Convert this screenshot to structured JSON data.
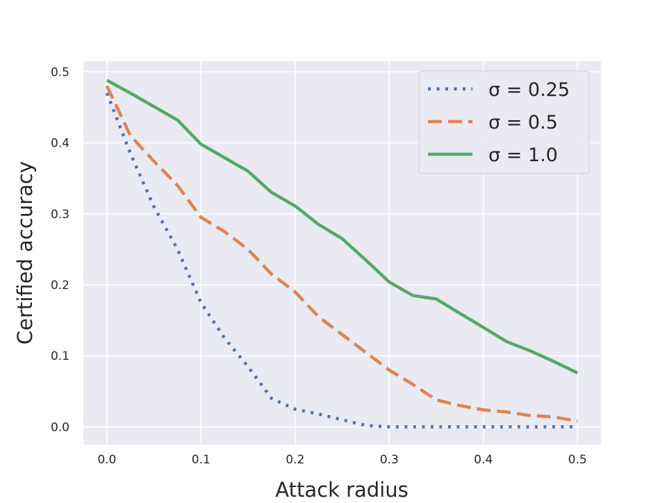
{
  "chart_data": {
    "type": "line",
    "title": "",
    "xlabel": "Attack radius",
    "ylabel": "Certified accuracy",
    "xlim": [
      -0.025,
      0.525
    ],
    "ylim": [
      -0.025,
      0.515
    ],
    "xticks": [
      "0.0",
      "0.1",
      "0.2",
      "0.3",
      "0.4",
      "0.5"
    ],
    "yticks": [
      "0.0",
      "0.1",
      "0.2",
      "0.3",
      "0.4",
      "0.5"
    ],
    "grid": true,
    "legend_position": "top-right",
    "x": [
      0,
      0.025,
      0.05,
      0.075,
      0.1,
      0.125,
      0.15,
      0.175,
      0.2,
      0.225,
      0.25,
      0.275,
      0.3,
      0.325,
      0.35,
      0.375,
      0.4,
      0.425,
      0.45,
      0.475,
      0.5
    ],
    "series": [
      {
        "name": "σ = 0.25",
        "style": "dotted",
        "color": "#4c72b0",
        "values": [
          0.47,
          0.385,
          0.31,
          0.25,
          0.175,
          0.125,
          0.085,
          0.04,
          0.025,
          0.018,
          0.01,
          0.002,
          0,
          0,
          0,
          0,
          0,
          0,
          0,
          0,
          0
        ]
      },
      {
        "name": "σ = 0.5",
        "style": "dashed",
        "color": "#dd8452",
        "values": [
          0.48,
          0.41,
          0.374,
          0.34,
          0.295,
          0.275,
          0.25,
          0.215,
          0.19,
          0.155,
          0.13,
          0.105,
          0.08,
          0.06,
          0.038,
          0.03,
          0.024,
          0.021,
          0.016,
          0.014,
          0.008
        ]
      },
      {
        "name": "σ = 1.0",
        "style": "solid",
        "color": "#55a868",
        "values": [
          0.488,
          0.47,
          0.451,
          0.432,
          0.398,
          0.379,
          0.36,
          0.33,
          0.311,
          0.285,
          0.265,
          0.235,
          0.204,
          0.185,
          0.18,
          0.16,
          0.14,
          0.12,
          0.107,
          0.092,
          0.076
        ]
      }
    ]
  },
  "colors": {
    "plot_background": "#eaeaf2",
    "grid": "#ffffff"
  }
}
